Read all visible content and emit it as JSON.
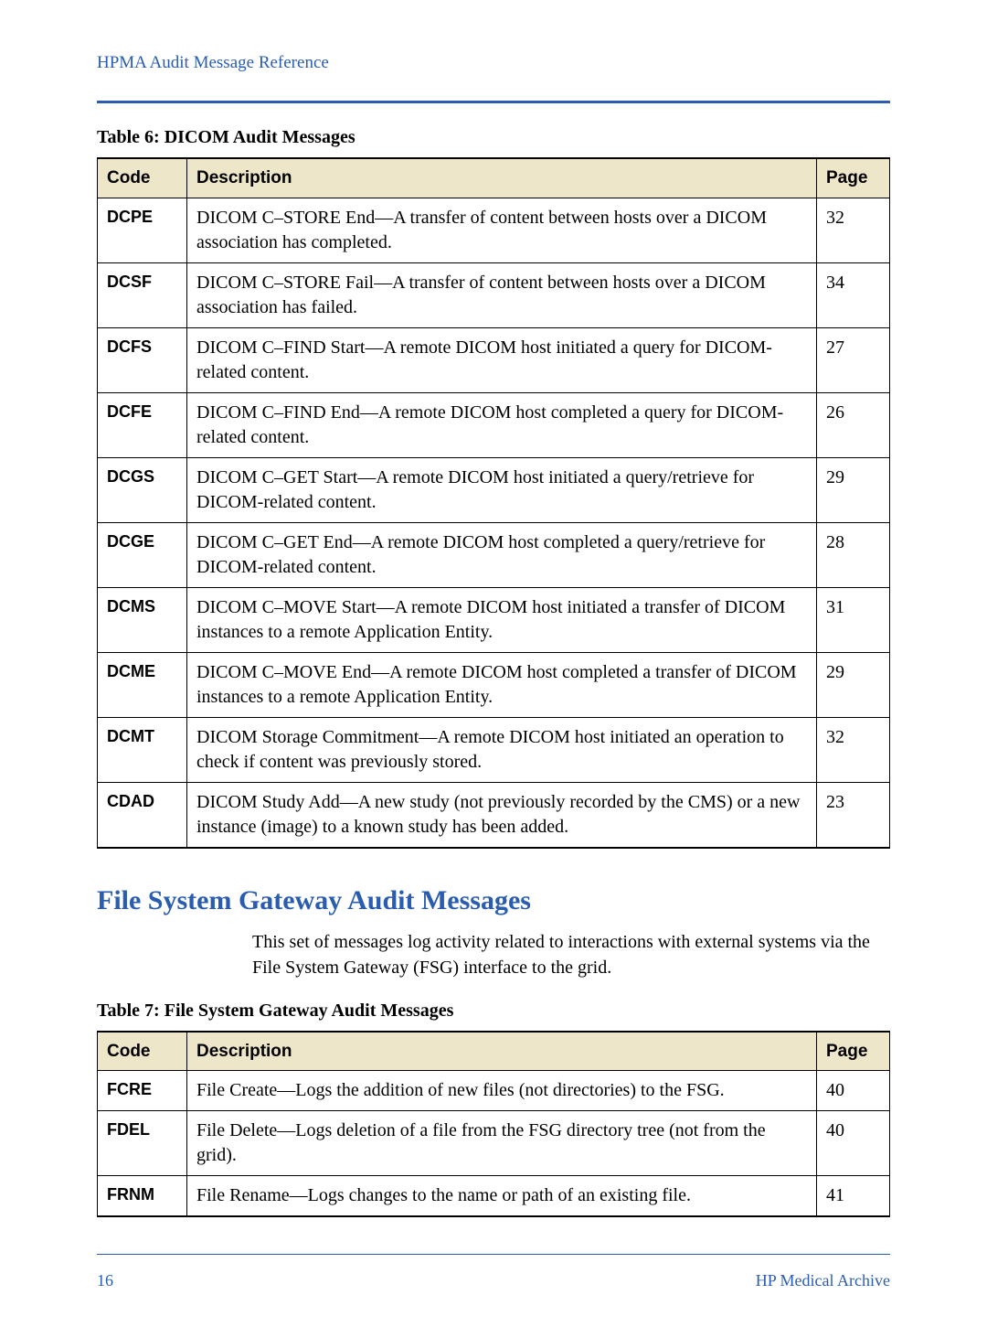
{
  "header": {
    "running_title": "HPMA Audit Message Reference"
  },
  "table6": {
    "caption": "Table 6: DICOM Audit Messages",
    "columns": {
      "code": "Code",
      "description": "Description",
      "page": "Page"
    },
    "rows": [
      {
        "code": "DCPE",
        "description": "DICOM C–STORE End—A transfer of content between hosts over a DICOM association has completed.",
        "page": "32"
      },
      {
        "code": "DCSF",
        "description": "DICOM C–STORE Fail—A transfer of content between hosts over a DICOM association has failed.",
        "page": "34"
      },
      {
        "code": "DCFS",
        "description": "DICOM C–FIND Start—A remote DICOM host initiated a query for DICOM-related content.",
        "page": "27"
      },
      {
        "code": "DCFE",
        "description": "DICOM C–FIND End—A remote DICOM host completed a query for DICOM-related content.",
        "page": "26"
      },
      {
        "code": "DCGS",
        "description": "DICOM C–GET Start—A remote DICOM host initiated a query/retrieve for DICOM-related content.",
        "page": "29"
      },
      {
        "code": "DCGE",
        "description": "DICOM C–GET End—A remote DICOM host completed a query/retrieve for DICOM-related content.",
        "page": "28"
      },
      {
        "code": "DCMS",
        "description": "DICOM C–MOVE Start—A remote DICOM host initiated a transfer of DICOM instances to a remote Application Entity.",
        "page": "31"
      },
      {
        "code": "DCME",
        "description": "DICOM C–MOVE End—A remote DICOM host completed a transfer of DICOM instances to a remote Application Entity.",
        "page": "29"
      },
      {
        "code": "DCMT",
        "description": "DICOM Storage Commitment—A remote DICOM host initiated an operation to check if content was previously stored.",
        "page": "32"
      },
      {
        "code": "CDAD",
        "description": "DICOM Study Add—A new study (not previously recorded by the CMS) or a new instance (image) to a known study has been added.",
        "page": "23"
      }
    ]
  },
  "section2": {
    "heading": "File System Gateway Audit Messages",
    "intro": "This set of messages log activity related to interactions with external systems via the File System Gateway (FSG) interface to the grid."
  },
  "table7": {
    "caption": "Table 7: File System Gateway Audit Messages",
    "columns": {
      "code": "Code",
      "description": "Description",
      "page": "Page"
    },
    "rows": [
      {
        "code": "FCRE",
        "description": "File Create—Logs the addition of new files (not directories) to the FSG.",
        "page": "40"
      },
      {
        "code": "FDEL",
        "description": "File Delete—Logs deletion of a file from the FSG directory tree (not from the grid).",
        "page": "40"
      },
      {
        "code": "FRNM",
        "description": "File Rename—Logs changes to the name or path of an existing file.",
        "page": "41"
      }
    ]
  },
  "footer": {
    "page_number": "16",
    "product": "HP Medical Archive"
  },
  "style": {
    "accent_color": "#2a5db0",
    "header_bg": "#eee6c9",
    "border_color": "#000000",
    "body_font": "Palatino",
    "label_font": "Arial"
  }
}
